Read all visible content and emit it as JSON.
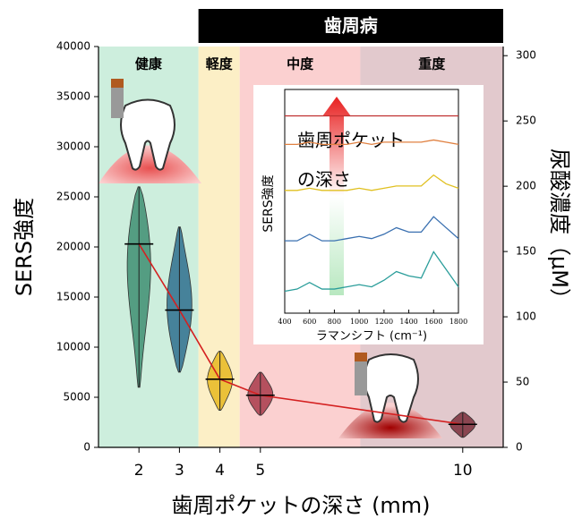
{
  "chart_data": [
    {
      "type": "violin",
      "banner": "歯周病",
      "regions": [
        {
          "label": "健康",
          "start": 1,
          "end": 3.47,
          "color": "#cdeedd"
        },
        {
          "label": "軽度",
          "start": 3.47,
          "end": 4.49,
          "color": "#fcefc6"
        },
        {
          "label": "中度",
          "start": 4.49,
          "end": 7.47,
          "color": "#fbd0d0"
        },
        {
          "label": "重度",
          "start": 7.47,
          "end": 11,
          "color": "#e2c9cd"
        }
      ],
      "x_label": "歯周ポケットの深さ (mm)",
      "y_label": "SERS強度",
      "y2_label": "尿酸濃度（μM）",
      "x": [
        2,
        3,
        4,
        5,
        10
      ],
      "median": [
        20300,
        13700,
        6800,
        5200,
        2300
      ],
      "min": [
        6000,
        7500,
        3700,
        3200,
        1000
      ],
      "max": [
        26000,
        22000,
        9600,
        7500,
        3500
      ],
      "violin_colors": [
        "#3e8e72",
        "#2e6f8e",
        "#e8b820",
        "#a83a4a",
        "#7a2e3a"
      ],
      "line_color": "#d42020",
      "xlim": [
        1,
        11
      ],
      "xticks": [
        2,
        3,
        4,
        5,
        10
      ],
      "ylim": [
        0,
        40000
      ],
      "yticks": [
        0,
        5000,
        10000,
        15000,
        20000,
        25000,
        30000,
        35000,
        40000
      ],
      "y2lim": [
        0,
        307
      ],
      "y2ticks": [
        0,
        50,
        100,
        150,
        200,
        250,
        300
      ]
    },
    {
      "type": "line",
      "y_label": "SERS強度",
      "x_label": "ラマンシフト (cm⁻¹)",
      "annotation": [
        "歯周ポケット",
        "の深さ"
      ],
      "x": [
        400,
        500,
        600,
        700,
        800,
        900,
        1000,
        1100,
        1200,
        1300,
        1400,
        1500,
        1600,
        1700,
        1800
      ],
      "series": [
        {
          "color": "#2a9d9a",
          "values": [
            1.0,
            1.1,
            1.4,
            1.1,
            1.1,
            1.2,
            1.3,
            1.2,
            1.5,
            1.9,
            1.7,
            1.6,
            2.8,
            2.0,
            1.2
          ]
        },
        {
          "color": "#3a70b0",
          "values": [
            3.3,
            3.3,
            3.6,
            3.3,
            3.3,
            3.4,
            3.5,
            3.4,
            3.6,
            3.9,
            3.7,
            3.7,
            4.4,
            3.9,
            3.4
          ]
        },
        {
          "color": "#e0c020",
          "values": [
            5.6,
            5.6,
            5.7,
            5.6,
            5.6,
            5.6,
            5.7,
            5.6,
            5.7,
            5.8,
            5.8,
            5.8,
            6.3,
            5.9,
            5.7
          ]
        },
        {
          "color": "#e08040",
          "values": [
            7.7,
            7.7,
            7.8,
            7.7,
            7.7,
            7.7,
            7.8,
            7.7,
            7.8,
            7.8,
            7.8,
            7.8,
            7.9,
            7.8,
            7.7
          ]
        },
        {
          "color": "#c03030",
          "values": [
            9.0,
            9.0,
            9.0,
            9.0,
            9.0,
            9.0,
            9.0,
            9.0,
            9.0,
            9.0,
            9.0,
            9.0,
            9.0,
            9.0,
            9.0
          ]
        }
      ],
      "xlim": [
        400,
        1800
      ],
      "xticks": [
        400,
        600,
        800,
        1000,
        1200,
        1400,
        1600,
        1800
      ],
      "ylim": [
        0,
        10
      ]
    }
  ]
}
